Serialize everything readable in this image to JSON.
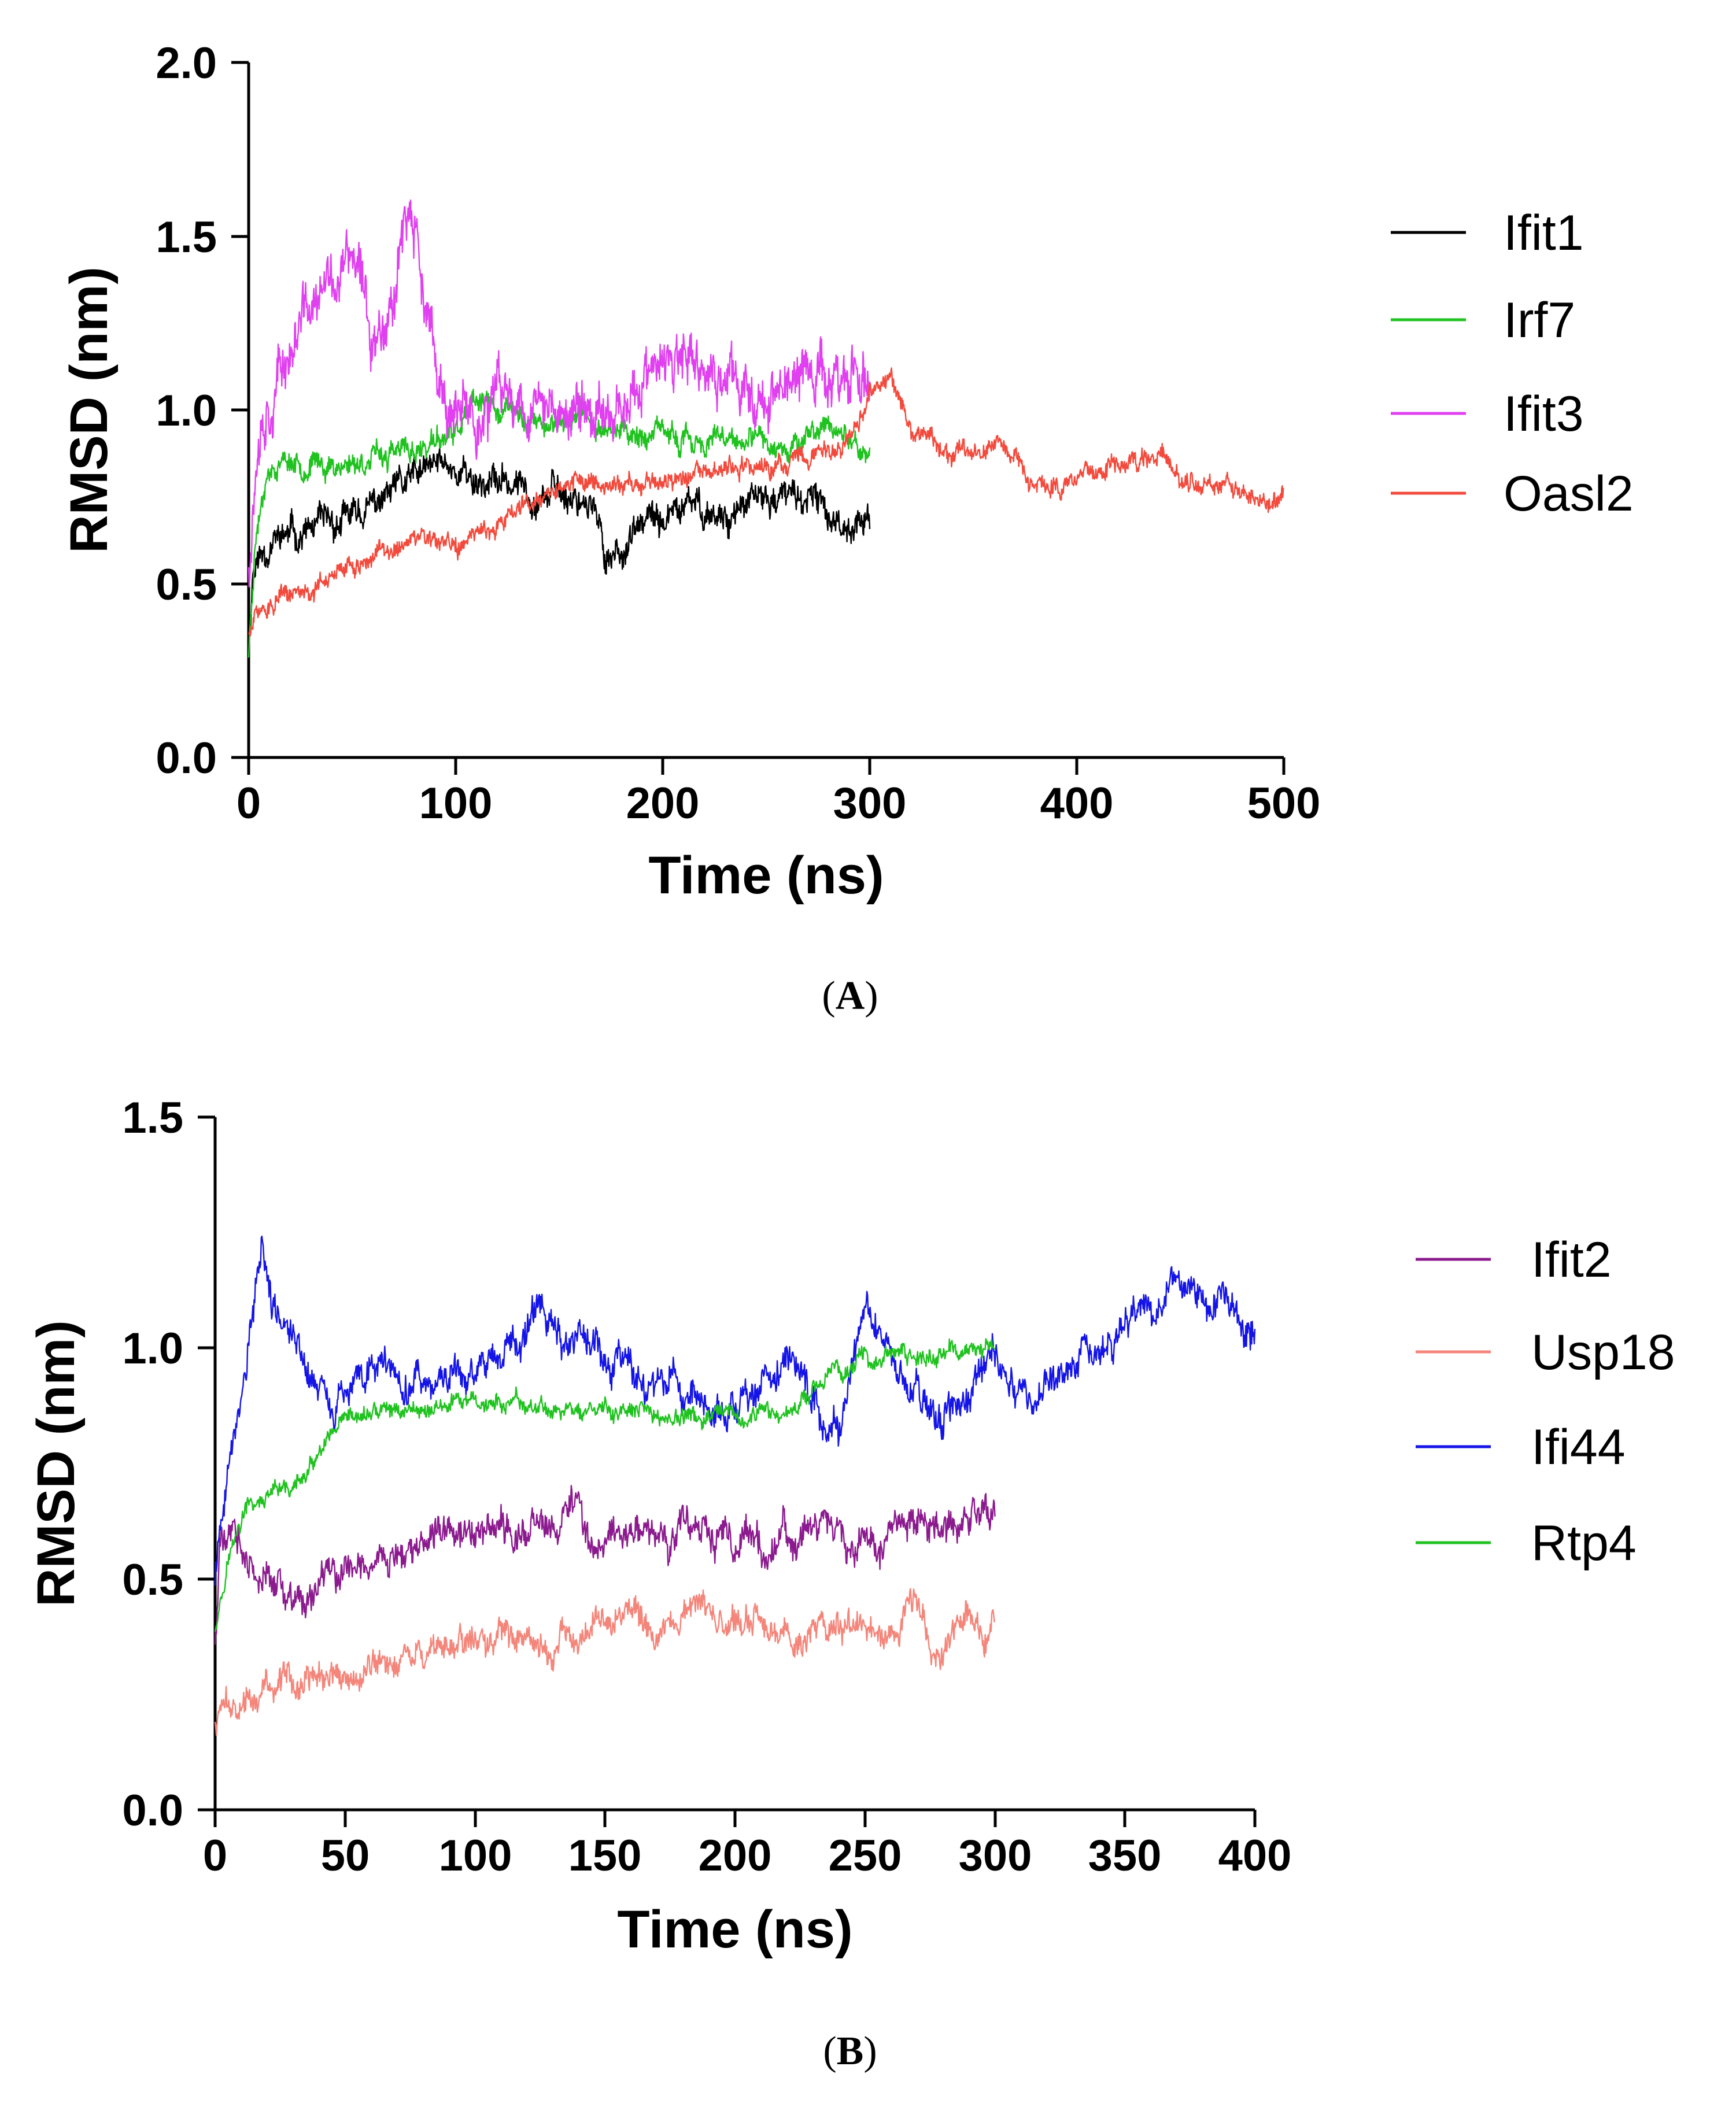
{
  "chart_data": [
    {
      "panel": "(A)",
      "panel_letter": "A",
      "type": "line",
      "xlabel": "Time (ns)",
      "ylabel": "RMSD (nm)",
      "xlim": [
        0,
        500
      ],
      "ylim": [
        0,
        2.0
      ],
      "xticks": [
        0,
        100,
        200,
        300,
        400,
        500
      ],
      "yticks": [
        0.0,
        0.5,
        1.0,
        1.5,
        2.0
      ],
      "xtick_labels": [
        "0",
        "100",
        "200",
        "300",
        "400",
        "500"
      ],
      "ytick_labels": [
        "0.0",
        "0.5",
        "1.0",
        "1.5",
        "2.0"
      ],
      "legend_position": "right",
      "series": [
        {
          "name": "Ifit1",
          "color": "#000000",
          "noise": 0.04,
          "seed": 11,
          "points": [
            [
              0,
              0.3
            ],
            [
              2,
              0.55
            ],
            [
              10,
              0.62
            ],
            [
              20,
              0.64
            ],
            [
              40,
              0.66
            ],
            [
              60,
              0.72
            ],
            [
              80,
              0.8
            ],
            [
              95,
              0.85
            ],
            [
              110,
              0.8
            ],
            [
              130,
              0.78
            ],
            [
              150,
              0.76
            ],
            [
              165,
              0.75
            ],
            [
              172,
              0.58
            ],
            [
              180,
              0.6
            ],
            [
              190,
              0.66
            ],
            [
              200,
              0.68
            ],
            [
              215,
              0.72
            ],
            [
              230,
              0.7
            ],
            [
              250,
              0.74
            ],
            [
              265,
              0.75
            ],
            [
              275,
              0.72
            ],
            [
              285,
              0.68
            ],
            [
              300,
              0.68
            ]
          ]
        },
        {
          "name": "Irf7",
          "color": "#1fc21f",
          "noise": 0.03,
          "seed": 23,
          "points": [
            [
              0,
              0.3
            ],
            [
              3,
              0.62
            ],
            [
              8,
              0.82
            ],
            [
              15,
              0.86
            ],
            [
              40,
              0.84
            ],
            [
              60,
              0.86
            ],
            [
              80,
              0.88
            ],
            [
              100,
              0.93
            ],
            [
              110,
              1.01
            ],
            [
              125,
              1.0
            ],
            [
              140,
              0.96
            ],
            [
              160,
              0.98
            ],
            [
              180,
              0.94
            ],
            [
              200,
              0.92
            ],
            [
              230,
              0.9
            ],
            [
              250,
              0.9
            ],
            [
              270,
              0.92
            ],
            [
              285,
              0.96
            ],
            [
              295,
              0.88
            ],
            [
              300,
              0.88
            ]
          ]
        },
        {
          "name": "Ifit3",
          "color": "#e040f0",
          "noise": 0.07,
          "seed": 37,
          "points": [
            [
              0,
              0.55
            ],
            [
              5,
              1.0
            ],
            [
              15,
              1.1
            ],
            [
              25,
              1.25
            ],
            [
              40,
              1.35
            ],
            [
              50,
              1.45
            ],
            [
              60,
              1.2
            ],
            [
              70,
              1.35
            ],
            [
              75,
              1.6
            ],
            [
              82,
              1.45
            ],
            [
              90,
              1.1
            ],
            [
              100,
              0.95
            ],
            [
              115,
              1.0
            ],
            [
              130,
              1.05
            ],
            [
              150,
              0.98
            ],
            [
              170,
              1.0
            ],
            [
              190,
              1.08
            ],
            [
              210,
              1.12
            ],
            [
              230,
              1.08
            ],
            [
              250,
              1.05
            ],
            [
              270,
              1.1
            ],
            [
              290,
              1.1
            ],
            [
              300,
              1.08
            ]
          ]
        },
        {
          "name": "Oasl2",
          "color": "#f24a3c",
          "noise": 0.025,
          "seed": 51,
          "points": [
            [
              0,
              0.35
            ],
            [
              5,
              0.42
            ],
            [
              20,
              0.46
            ],
            [
              40,
              0.52
            ],
            [
              60,
              0.58
            ],
            [
              80,
              0.62
            ],
            [
              100,
              0.6
            ],
            [
              120,
              0.68
            ],
            [
              140,
              0.76
            ],
            [
              160,
              0.8
            ],
            [
              180,
              0.78
            ],
            [
              200,
              0.8
            ],
            [
              230,
              0.82
            ],
            [
              260,
              0.84
            ],
            [
              290,
              0.9
            ],
            [
              300,
              1.05
            ],
            [
              310,
              1.08
            ],
            [
              320,
              0.94
            ],
            [
              340,
              0.86
            ],
            [
              360,
              0.92
            ],
            [
              380,
              0.78
            ],
            [
              400,
              0.8
            ],
            [
              420,
              0.84
            ],
            [
              435,
              0.86
            ],
            [
              450,
              0.8
            ],
            [
              470,
              0.78
            ],
            [
              490,
              0.74
            ],
            [
              500,
              0.78
            ]
          ]
        }
      ]
    },
    {
      "panel": "(B)",
      "panel_letter": "B",
      "type": "line",
      "xlabel": "Time (ns)",
      "ylabel": "RMSD (nm)",
      "xlim": [
        0,
        400
      ],
      "ylim": [
        0,
        1.5
      ],
      "xticks": [
        0,
        50,
        100,
        150,
        200,
        250,
        300,
        350,
        400
      ],
      "yticks": [
        0.0,
        0.5,
        1.0,
        1.5
      ],
      "xtick_labels": [
        "0",
        "50",
        "100",
        "150",
        "200",
        "250",
        "300",
        "350",
        "400"
      ],
      "ytick_labels": [
        "0.0",
        "0.5",
        "1.0",
        "1.5"
      ],
      "legend_position": "right",
      "series": [
        {
          "name": "Ifit2",
          "color": "#8b1a8e",
          "noise": 0.035,
          "seed": 61,
          "points": [
            [
              0,
              0.35
            ],
            [
              2,
              0.6
            ],
            [
              8,
              0.58
            ],
            [
              15,
              0.5
            ],
            [
              30,
              0.45
            ],
            [
              40,
              0.46
            ],
            [
              50,
              0.52
            ],
            [
              70,
              0.56
            ],
            [
              90,
              0.6
            ],
            [
              110,
              0.6
            ],
            [
              130,
              0.62
            ],
            [
              140,
              0.68
            ],
            [
              145,
              0.55
            ],
            [
              155,
              0.6
            ],
            [
              180,
              0.6
            ],
            [
              200,
              0.58
            ],
            [
              230,
              0.6
            ],
            [
              260,
              0.6
            ],
            [
              280,
              0.62
            ],
            [
              300,
              0.64
            ]
          ]
        },
        {
          "name": "Usp18",
          "color": "#f4857a",
          "noise": 0.03,
          "seed": 73,
          "points": [
            [
              0,
              0.18
            ],
            [
              5,
              0.22
            ],
            [
              20,
              0.26
            ],
            [
              40,
              0.28
            ],
            [
              60,
              0.3
            ],
            [
              80,
              0.34
            ],
            [
              100,
              0.38
            ],
            [
              120,
              0.38
            ],
            [
              130,
              0.36
            ],
            [
              140,
              0.38
            ],
            [
              150,
              0.42
            ],
            [
              170,
              0.4
            ],
            [
              185,
              0.44
            ],
            [
              200,
              0.4
            ],
            [
              220,
              0.38
            ],
            [
              240,
              0.4
            ],
            [
              260,
              0.4
            ],
            [
              270,
              0.46
            ],
            [
              275,
              0.34
            ],
            [
              290,
              0.4
            ],
            [
              300,
              0.4
            ]
          ]
        },
        {
          "name": "Ifi44",
          "color": "#1414e6",
          "noise": 0.035,
          "seed": 89,
          "points": [
            [
              0,
              0.5
            ],
            [
              5,
              0.75
            ],
            [
              12,
              0.95
            ],
            [
              18,
              1.25
            ],
            [
              22,
              1.1
            ],
            [
              28,
              1.05
            ],
            [
              35,
              0.95
            ],
            [
              45,
              0.88
            ],
            [
              60,
              0.96
            ],
            [
              80,
              0.92
            ],
            [
              100,
              0.94
            ],
            [
              115,
              1.0
            ],
            [
              125,
              1.12
            ],
            [
              135,
              1.0
            ],
            [
              160,
              0.96
            ],
            [
              180,
              0.92
            ],
            [
              200,
              0.84
            ],
            [
              220,
              0.96
            ],
            [
              240,
              0.82
            ],
            [
              250,
              1.1
            ],
            [
              265,
              0.92
            ],
            [
              280,
              0.82
            ],
            [
              300,
              0.98
            ],
            [
              315,
              0.86
            ],
            [
              330,
              0.98
            ],
            [
              350,
              1.04
            ],
            [
              370,
              1.12
            ],
            [
              385,
              1.1
            ],
            [
              400,
              1.04
            ]
          ]
        },
        {
          "name": "Rtp4",
          "color": "#1fc21f",
          "noise": 0.018,
          "seed": 97,
          "points": [
            [
              0,
              0.4
            ],
            [
              5,
              0.55
            ],
            [
              12,
              0.65
            ],
            [
              25,
              0.68
            ],
            [
              35,
              0.72
            ],
            [
              45,
              0.8
            ],
            [
              60,
              0.86
            ],
            [
              100,
              0.88
            ],
            [
              150,
              0.86
            ],
            [
              200,
              0.84
            ],
            [
              220,
              0.86
            ],
            [
              230,
              0.92
            ],
            [
              250,
              0.98
            ],
            [
              270,
              0.98
            ],
            [
              300,
              1.0
            ]
          ]
        }
      ]
    }
  ]
}
